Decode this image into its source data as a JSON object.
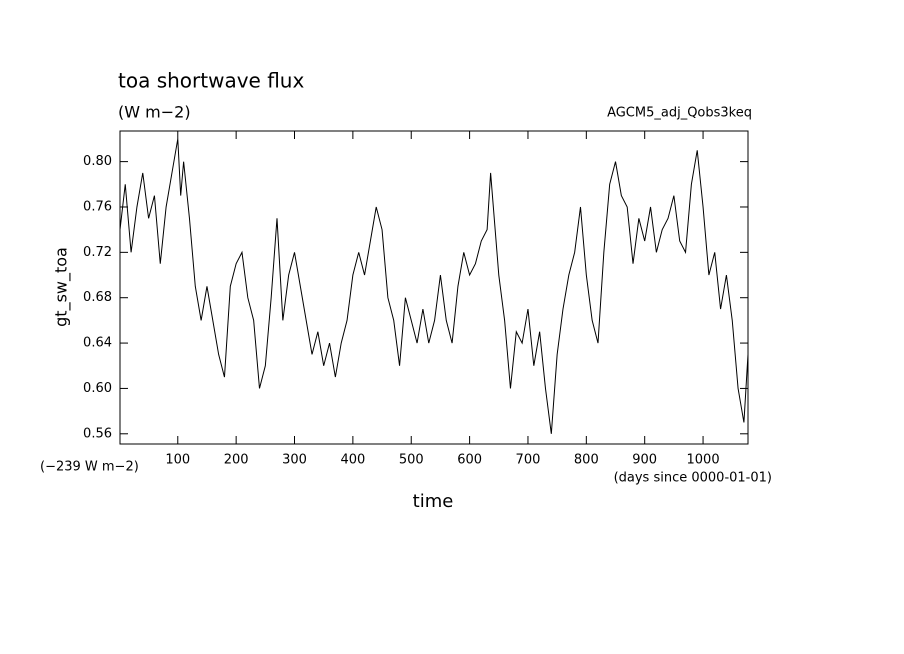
{
  "chart_data": {
    "type": "line",
    "title": "toa shortwave flux",
    "subtitle": "(W m−2)",
    "run_label": "AGCM5_adj_Qobs3keq",
    "ylabel": "gt_sw_toa",
    "xlabel": "time",
    "offset_label": "(−239 W m−2)",
    "x_units": "(days since 0000-01-01)",
    "x": [
      1,
      10,
      20,
      30,
      40,
      50,
      60,
      70,
      80,
      90,
      100,
      105,
      110,
      120,
      130,
      140,
      150,
      160,
      170,
      180,
      190,
      200,
      210,
      220,
      230,
      240,
      250,
      260,
      270,
      280,
      290,
      300,
      310,
      320,
      330,
      340,
      350,
      360,
      370,
      380,
      390,
      400,
      410,
      420,
      430,
      440,
      450,
      460,
      470,
      480,
      490,
      500,
      510,
      520,
      530,
      540,
      550,
      560,
      570,
      580,
      590,
      600,
      610,
      620,
      630,
      636,
      650,
      660,
      670,
      680,
      690,
      700,
      710,
      720,
      730,
      740,
      750,
      760,
      770,
      780,
      790,
      800,
      810,
      820,
      830,
      840,
      850,
      860,
      870,
      880,
      890,
      900,
      910,
      920,
      930,
      940,
      950,
      960,
      970,
      980,
      990,
      1000,
      1010,
      1020,
      1030,
      1040,
      1050,
      1060,
      1070,
      1077
    ],
    "series": [
      {
        "name": "gt_sw_toa",
        "color": "#000000",
        "values": [
          0.74,
          0.78,
          0.72,
          0.76,
          0.79,
          0.75,
          0.77,
          0.71,
          0.76,
          0.79,
          0.82,
          0.77,
          0.8,
          0.75,
          0.69,
          0.66,
          0.69,
          0.66,
          0.63,
          0.61,
          0.69,
          0.71,
          0.72,
          0.68,
          0.66,
          0.6,
          0.62,
          0.68,
          0.75,
          0.66,
          0.7,
          0.72,
          0.69,
          0.66,
          0.63,
          0.65,
          0.62,
          0.64,
          0.61,
          0.64,
          0.66,
          0.7,
          0.72,
          0.7,
          0.73,
          0.76,
          0.74,
          0.68,
          0.66,
          0.62,
          0.68,
          0.66,
          0.64,
          0.67,
          0.64,
          0.66,
          0.7,
          0.66,
          0.64,
          0.69,
          0.72,
          0.7,
          0.71,
          0.73,
          0.74,
          0.79,
          0.7,
          0.66,
          0.6,
          0.65,
          0.64,
          0.67,
          0.62,
          0.65,
          0.6,
          0.56,
          0.63,
          0.67,
          0.7,
          0.72,
          0.76,
          0.7,
          0.66,
          0.64,
          0.72,
          0.78,
          0.8,
          0.77,
          0.76,
          0.71,
          0.75,
          0.73,
          0.76,
          0.72,
          0.74,
          0.75,
          0.77,
          0.73,
          0.72,
          0.78,
          0.81,
          0.76,
          0.7,
          0.72,
          0.67,
          0.7,
          0.66,
          0.6,
          0.57,
          0.63
        ]
      }
    ],
    "xlim": [
      1,
      1077
    ],
    "ylim": [
      0.551,
      0.827
    ],
    "xticks": [
      100,
      200,
      300,
      400,
      500,
      600,
      700,
      800,
      900,
      1000
    ],
    "yticks": [
      0.56,
      {
        "value": 0.6,
        "label": "0.60"
      },
      0.64,
      0.68,
      0.72,
      0.76,
      {
        "value": 0.8,
        "label": "0.80"
      }
    ]
  }
}
